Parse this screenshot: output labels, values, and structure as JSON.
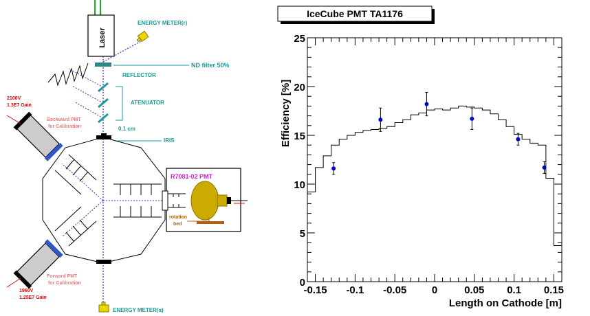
{
  "diagram": {
    "laser": "Laser",
    "energy_meter_r": "ENERGY METER(r)",
    "energy_meter_a": "ENERGY METER(a)",
    "nd_filter": "ND filter 50%",
    "reflector": "REFLECTOR",
    "atenuator": "ATENUATOR",
    "iris_size": "0.1 cm",
    "iris": "IRIS",
    "backward_voltage": "2100V",
    "backward_gain": "1.3E7 Gain",
    "backward_label_1": "Backward PMT",
    "backward_label_2": "for Calibration",
    "forward_voltage": "1960V",
    "forward_gain": "1.25E7 Gain",
    "forward_label_1": "Forward PMT",
    "forward_label_2": "for Calibration",
    "test_pmt": "R7081-02 PMT",
    "rotation_1": "rotation",
    "rotation_2": "bed",
    "colors": {
      "cyan": "#1a9a9a",
      "red": "#cc1111",
      "pink": "#e87b7b",
      "magenta": "#cc22cc",
      "pmt_yellow": "#ccaa00",
      "bed_brown": "#b06010",
      "beam_blue": "#3333cc",
      "meter_yellow": "#e8d800"
    }
  },
  "chart_data": {
    "type": "histogram+scatter",
    "title": "IceCube PMT TA1176",
    "xlabel": "Length on Cathode [m]",
    "ylabel": "Efficiency [%]",
    "xlim": [
      -0.16,
      0.16
    ],
    "ylim": [
      0,
      25
    ],
    "xticks": [
      "-0.15",
      "-0.1",
      "-0.05",
      "0",
      "0.05",
      "0.1",
      "0.15"
    ],
    "xtick_values": [
      -0.15,
      -0.1,
      -0.05,
      0,
      0.05,
      0.1,
      0.15
    ],
    "yticks": [
      "0",
      "5",
      "10",
      "15",
      "20",
      "25"
    ],
    "ytick_values": [
      0,
      5,
      10,
      15,
      20,
      25
    ],
    "grid": false,
    "legend": "none",
    "histogram": {
      "edges": [
        -0.16,
        -0.15,
        -0.14,
        -0.13,
        -0.12,
        -0.11,
        -0.1,
        -0.09,
        -0.08,
        -0.07,
        -0.06,
        -0.05,
        -0.04,
        -0.03,
        -0.02,
        -0.01,
        0.0,
        0.01,
        0.02,
        0.03,
        0.04,
        0.05,
        0.06,
        0.07,
        0.08,
        0.09,
        0.1,
        0.11,
        0.12,
        0.13,
        0.14,
        0.15,
        0.16
      ],
      "values": [
        9.2,
        11.7,
        12.9,
        14.0,
        14.6,
        15.0,
        15.3,
        15.5,
        15.6,
        15.7,
        15.9,
        16.3,
        16.6,
        17.1,
        17.3,
        17.6,
        17.7,
        17.6,
        17.8,
        18.0,
        17.9,
        17.8,
        17.6,
        17.2,
        16.6,
        15.9,
        15.1,
        14.6,
        14.2,
        14.0,
        10.6,
        3.7
      ]
    },
    "points": [
      {
        "x": -0.127,
        "y": 11.6,
        "err": 0.6
      },
      {
        "x": -0.068,
        "y": 16.6,
        "err": 1.2
      },
      {
        "x": -0.01,
        "y": 18.2,
        "err": 1.2
      },
      {
        "x": 0.047,
        "y": 16.7,
        "err": 1.1
      },
      {
        "x": 0.105,
        "y": 14.6,
        "err": 0.6
      },
      {
        "x": 0.138,
        "y": 11.7,
        "err": 0.6
      }
    ],
    "marker_color": "#0000cc"
  }
}
